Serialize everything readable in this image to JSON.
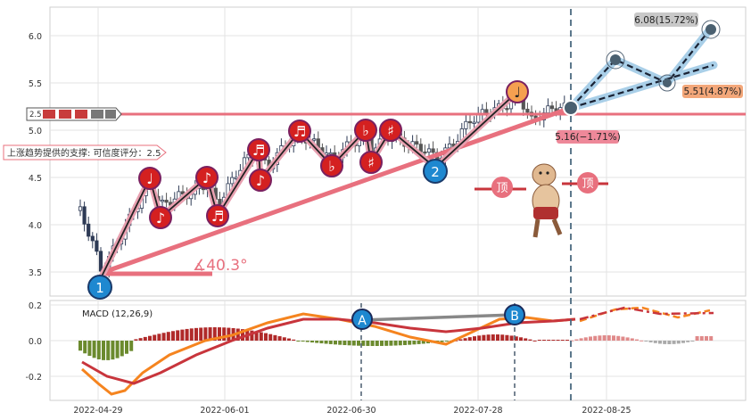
{
  "chart_data": [
    {
      "type": "candlestick",
      "ylim": [
        3.25,
        6.3
      ],
      "x_ticks": [
        "2022-04-29",
        "2022-06-01",
        "2022-06-30",
        "2022-07-28",
        "2022-08-25"
      ],
      "y_ticks": [
        3.5,
        4.0,
        4.5,
        5.0,
        5.5,
        6.0
      ],
      "grid": true,
      "annotations": {
        "support_text": "上涨趋势提供的支撑: 可信度评分：2.5",
        "angle_text": "∡40.3°",
        "forecast_high_label": "6.08(15.72%)",
        "forecast_mid_label": "5.51(4.87%)",
        "forecast_low_label": "5.16(−1.71%)",
        "badge_1": "1",
        "badge_2": "2",
        "top_badge": "顶",
        "side_value": "2.5",
        "music_notes": [
          "♩",
          "♪",
          "♪",
          "♬",
          "♬",
          "♪",
          "♬",
          "♭",
          "♭",
          "♯",
          "♯",
          "♩"
        ]
      }
    },
    {
      "type": "macd",
      "label": "MACD (12,26,9)",
      "ylim": [
        -0.32,
        0.22
      ],
      "y_ticks": [
        0.2,
        0.0,
        -0.2
      ],
      "markers": [
        "A",
        "B"
      ]
    }
  ]
}
